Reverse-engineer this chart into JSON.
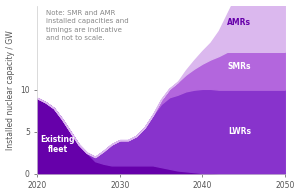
{
  "note": "Note: SMR and AMR\ninstalled capacities and\ntimings are indicative\nand not to scale.",
  "ylabel": "Installed nuclear capacity / GW",
  "xlim": [
    2020,
    2050
  ],
  "ylim": [
    0,
    20
  ],
  "yticks": [
    0,
    5,
    10
  ],
  "xticks": [
    2020,
    2030,
    2040,
    2050
  ],
  "existing_fleet_color": "#6600aa",
  "lwr_color": "#8833cc",
  "smr_color": "#b366dd",
  "amr_color": "#dbb8ee",
  "label_color_white": "#ffffff",
  "label_color_dark": "#6600aa",
  "amr_label": "AMRs",
  "x": [
    2020,
    2021,
    2022,
    2023,
    2024,
    2025,
    2026,
    2027,
    2028,
    2029,
    2030,
    2031,
    2032,
    2033,
    2034,
    2035,
    2036,
    2037,
    2038,
    2039,
    2040,
    2041,
    2042,
    2043,
    2044,
    2045,
    2046,
    2047,
    2048,
    2049,
    2050
  ],
  "existing_fleet": [
    9.0,
    8.5,
    7.8,
    6.5,
    5.0,
    3.5,
    2.5,
    1.5,
    1.2,
    1.0,
    1.0,
    1.0,
    1.0,
    1.0,
    1.0,
    0.8,
    0.6,
    0.4,
    0.3,
    0.2,
    0.1,
    0.1,
    0.0,
    0.0,
    0.0,
    0.0,
    0.0,
    0.0,
    0.0,
    0.0,
    0.0
  ],
  "lwr": [
    0.0,
    0.0,
    0.0,
    0.0,
    0.0,
    0.0,
    0.0,
    0.5,
    1.5,
    2.5,
    3.0,
    3.0,
    3.5,
    4.5,
    6.0,
    7.5,
    8.5,
    9.0,
    9.5,
    9.8,
    10.0,
    10.0,
    10.0,
    10.0,
    10.0,
    10.0,
    10.0,
    10.0,
    10.0,
    10.0,
    10.0
  ],
  "smr": [
    0.0,
    0.0,
    0.0,
    0.0,
    0.0,
    0.0,
    0.0,
    0.0,
    0.0,
    0.0,
    0.0,
    0.0,
    0.0,
    0.0,
    0.0,
    0.5,
    1.0,
    1.5,
    2.0,
    2.5,
    3.0,
    3.5,
    4.0,
    4.5,
    4.5,
    4.5,
    4.5,
    4.5,
    4.5,
    4.5,
    4.5
  ],
  "amr": [
    0.0,
    0.0,
    0.0,
    0.0,
    0.0,
    0.0,
    0.0,
    0.0,
    0.0,
    0.0,
    0.0,
    0.0,
    0.0,
    0.0,
    0.0,
    0.0,
    0.0,
    0.0,
    0.5,
    1.0,
    1.5,
    2.0,
    3.0,
    4.5,
    6.5,
    7.0,
    7.5,
    7.5,
    7.5,
    7.5,
    7.5
  ],
  "bg_color": "#ffffff",
  "spine_color": "#cccccc",
  "tick_color": "#555555",
  "note_color": "#888888",
  "note_fontsize": 5.0,
  "label_fontsize": 5.5,
  "tick_fontsize": 5.5,
  "ylabel_fontsize": 5.5
}
